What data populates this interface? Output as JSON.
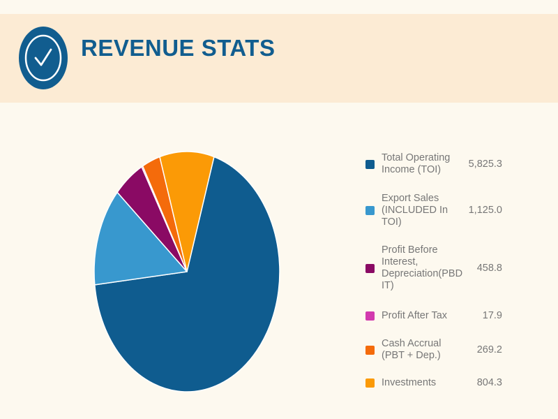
{
  "header": {
    "title": "REVENUE STATS",
    "icon": "check-circle-icon",
    "badge_color": "#115d8f",
    "background": "#fcebd4"
  },
  "chart_data": {
    "type": "pie",
    "title": "",
    "legend_position": "right",
    "categories": [
      "Total Operating Income (TOI)",
      "Export Sales (INCLUDED In TOI)",
      "Profit Before Interest, Depreciation(PBDIT)",
      "Profit After Tax",
      "Cash Accrual (PBT + Dep.)",
      "Investments"
    ],
    "labels": [
      "Total Operating Income (TOI)",
      "Export Sales (INCLUDED In TOI)",
      "Profit Before Interest, Depreciation(PBD IT)",
      "Profit After Tax",
      "Cash Accrual (PBT + Dep.)",
      "Investments"
    ],
    "values": [
      5825.3,
      1125.0,
      458.8,
      17.9,
      269.2,
      804.3
    ],
    "value_labels": [
      "5,825.3",
      "1,125.0",
      "458.8",
      "17.9",
      "269.2",
      "804.3"
    ],
    "colors": [
      "#0f5c8f",
      "#3898ce",
      "#8a0a64",
      "#d23aae",
      "#f46b0b",
      "#fb9a06"
    ]
  }
}
